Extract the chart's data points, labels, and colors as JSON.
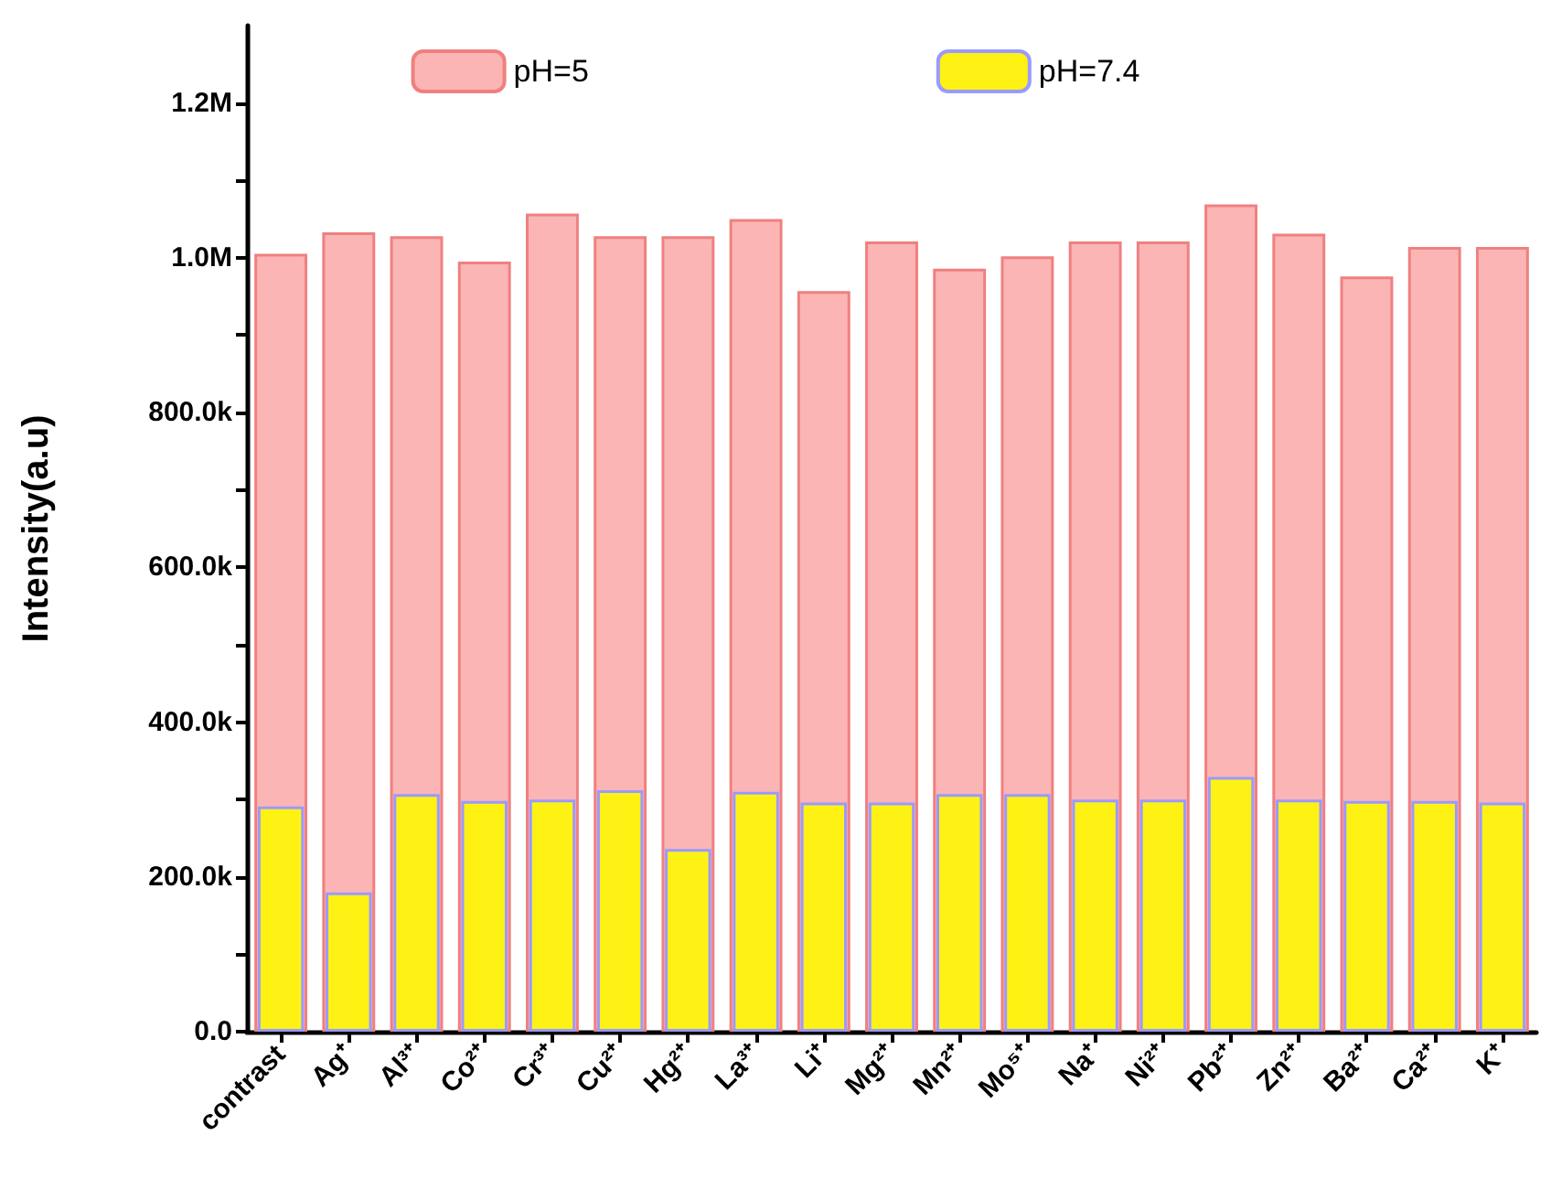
{
  "chart_data": {
    "type": "bar",
    "ylabel": "Intensity(a.u)",
    "categories": [
      "contrast",
      "Ag⁺",
      "Al³⁺",
      "Co²⁺",
      "Cr³⁺",
      "Cu²⁺",
      "Hg²⁺",
      "La³⁺",
      "Li⁺",
      "Mg²⁺",
      "Mn²⁺",
      "Mo⁵⁺",
      "Na⁺",
      "Ni²⁺",
      "Pb²⁺",
      "Zn²⁺",
      "Ba²⁺",
      "Ca²⁺",
      "K⁺"
    ],
    "series": [
      {
        "name": "pH=5",
        "color": "#fbb5b5",
        "values": [
          1005000,
          1033000,
          1028000,
          995000,
          1057000,
          1028000,
          1028000,
          1050000,
          957000,
          1021000,
          986000,
          1002000,
          1021000,
          1021000,
          1069000,
          1031000,
          976000,
          1014000,
          1014000
        ]
      },
      {
        "name": "pH=7.4",
        "color": "#fdf214",
        "values": [
          291000,
          180000,
          307000,
          298000,
          300000,
          312000,
          236000,
          310000,
          296000,
          296000,
          307000,
          307000,
          300000,
          300000,
          329000,
          300000,
          298000,
          298000,
          296000
        ]
      }
    ],
    "ylim": [
      0,
      1300000
    ],
    "yticks": [
      {
        "value": 0,
        "label": "0.0"
      },
      {
        "value": 100000,
        "label": null
      },
      {
        "value": 200000,
        "label": "200.0k"
      },
      {
        "value": 300000,
        "label": null
      },
      {
        "value": 400000,
        "label": "400.0k"
      },
      {
        "value": 500000,
        "label": null
      },
      {
        "value": 600000,
        "label": "600.0k"
      },
      {
        "value": 700000,
        "label": null
      },
      {
        "value": 800000,
        "label": "800.0k"
      },
      {
        "value": 900000,
        "label": null
      },
      {
        "value": 1000000,
        "label": "1.0M"
      },
      {
        "value": 1100000,
        "label": null
      },
      {
        "value": 1200000,
        "label": "1.2M"
      }
    ],
    "grid": false,
    "legend": "top",
    "stacked": false
  }
}
